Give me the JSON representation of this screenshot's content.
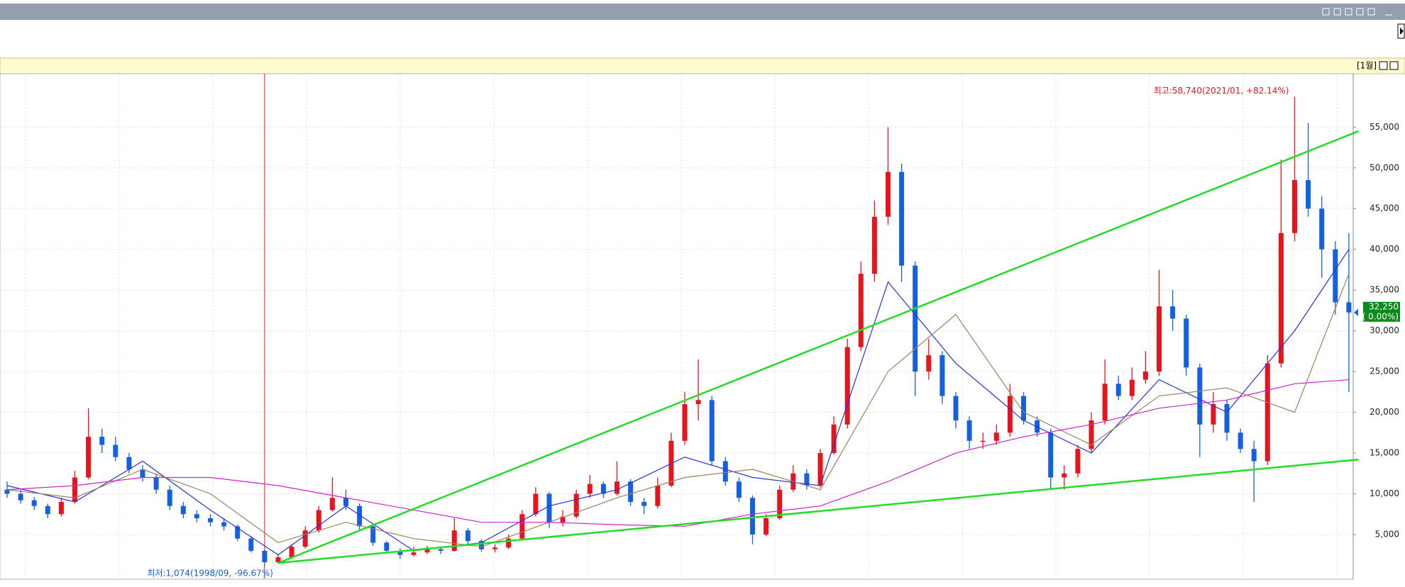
{
  "period_label": "[1월]",
  "chart_data": {
    "type": "candlestick",
    "up_color": "#e8141c",
    "down_color": "#1560e0",
    "ylim": [
      -400,
      61380
    ],
    "yticks": [
      {
        "value": 5000,
        "label": "5,000"
      },
      {
        "value": 10000,
        "label": "10,000"
      },
      {
        "value": 15000,
        "label": "15,000"
      },
      {
        "value": 20000,
        "label": "20,000"
      },
      {
        "value": 25000,
        "label": "25,000"
      },
      {
        "value": 30000,
        "label": "30,000"
      },
      {
        "value": 35000,
        "label": "35,000"
      },
      {
        "value": 40000,
        "label": "40,000"
      },
      {
        "value": 45000,
        "label": "45,000"
      },
      {
        "value": 50000,
        "label": "50,000"
      },
      {
        "value": 55000,
        "label": "55,000"
      }
    ],
    "grid": true,
    "open": [
      10500,
      10000,
      9200,
      8500,
      7500,
      9000,
      12000,
      17000,
      16000,
      14500,
      13000,
      12000,
      10500,
      8500,
      7500,
      7000,
      6500,
      6000,
      4500,
      3000,
      1600,
      2200,
      3500,
      5500,
      8000,
      9500,
      8500,
      6000,
      4000,
      3000,
      2500,
      2800,
      3200,
      3000,
      5500,
      4200,
      3200,
      3400,
      4500,
      7500,
      10000,
      6500,
      7200,
      10000,
      11200,
      10000,
      11500,
      9000,
      8500,
      11000,
      16500,
      21000,
      21500,
      14000,
      11500,
      9500,
      5000,
      7000,
      10500,
      12500,
      11000,
      15000,
      18500,
      28000,
      37000,
      44000,
      49500,
      38000,
      25000,
      27000,
      22000,
      19000,
      16500,
      16500,
      17500,
      22000,
      19000,
      17500,
      12000,
      12500,
      15500,
      19000,
      23500,
      22000,
      24000,
      25000,
      33000,
      31500,
      25500,
      18500,
      21000,
      17500,
      15500,
      14000,
      26000,
      42000,
      48500,
      45000,
      40000,
      33500
    ],
    "high": [
      11500,
      10500,
      9600,
      8800,
      9500,
      12800,
      20500,
      18000,
      17000,
      15000,
      13500,
      12500,
      11000,
      9000,
      8000,
      7500,
      7000,
      6200,
      4800,
      3200,
      2600,
      3800,
      6000,
      8500,
      12000,
      10500,
      8800,
      6200,
      4200,
      3300,
      3500,
      3600,
      3500,
      7000,
      5800,
      4400,
      3800,
      5000,
      8000,
      10800,
      10200,
      8000,
      10500,
      12300,
      11500,
      14000,
      11800,
      9500,
      12000,
      17500,
      22500,
      26500,
      22000,
      14500,
      12000,
      9800,
      7500,
      11000,
      13500,
      13000,
      15500,
      19500,
      29000,
      38500,
      46000,
      55000,
      50500,
      38500,
      29000,
      27500,
      22500,
      19500,
      17500,
      18500,
      23500,
      22500,
      19500,
      18000,
      13500,
      16000,
      20000,
      26500,
      24500,
      25500,
      27500,
      37500,
      35000,
      32000,
      26000,
      22500,
      21500,
      18000,
      16500,
      27000,
      51000,
      58740,
      55500,
      46500,
      41000,
      42000
    ],
    "low": [
      9500,
      8800,
      8000,
      7000,
      7200,
      8800,
      11800,
      15000,
      14000,
      12500,
      11500,
      10000,
      8000,
      7000,
      6500,
      6000,
      5500,
      4200,
      2800,
      1074,
      1400,
      2000,
      3300,
      5200,
      7800,
      8000,
      5500,
      3600,
      2700,
      2000,
      2300,
      2600,
      2600,
      2900,
      3800,
      2900,
      2800,
      3200,
      4300,
      7200,
      5800,
      6000,
      7000,
      9500,
      9500,
      9800,
      8500,
      7500,
      8200,
      10800,
      16000,
      19000,
      13500,
      11000,
      9000,
      3800,
      4800,
      6800,
      10200,
      10500,
      10800,
      14800,
      18000,
      27500,
      36000,
      43000,
      36000,
      22000,
      24000,
      21000,
      18000,
      15500,
      15500,
      16000,
      17000,
      18500,
      17000,
      10500,
      10500,
      12000,
      15000,
      18500,
      21500,
      21500,
      23500,
      24500,
      30000,
      24500,
      14500,
      17500,
      16500,
      15000,
      9000,
      13500,
      25500,
      41000,
      44000,
      36500,
      32000,
      22500
    ],
    "close": [
      10000,
      9200,
      8500,
      7500,
      9000,
      12000,
      17000,
      16000,
      14500,
      13000,
      12000,
      10500,
      8500,
      7500,
      7000,
      6500,
      6000,
      4500,
      3000,
      1600,
      2200,
      3500,
      5500,
      8000,
      9500,
      8500,
      6000,
      4000,
      3000,
      2500,
      2800,
      3200,
      3000,
      5500,
      4200,
      3200,
      3400,
      4500,
      7500,
      10000,
      6500,
      7200,
      10000,
      11200,
      10000,
      11500,
      9000,
      8500,
      11000,
      16500,
      21000,
      21500,
      14000,
      11500,
      9500,
      5000,
      7000,
      10500,
      12500,
      11000,
      15000,
      18500,
      28000,
      37000,
      44000,
      49500,
      38000,
      25000,
      27000,
      22000,
      19000,
      16500,
      16500,
      17500,
      22000,
      19000,
      17500,
      12000,
      12500,
      15500,
      19000,
      23500,
      22000,
      24000,
      25000,
      33000,
      31500,
      25500,
      18500,
      21000,
      17500,
      15500,
      14000,
      26000,
      42000,
      48500,
      45000,
      40000,
      33500,
      32250
    ],
    "moving_averages": [
      {
        "color": "#2233dd",
        "x": [
          0,
          5,
          10,
          15,
          20,
          25,
          30,
          35,
          40,
          45,
          50,
          55,
          60,
          65,
          70,
          75,
          80,
          85,
          90,
          95,
          99
        ],
        "values": [
          11000,
          9000,
          14000,
          8000,
          2500,
          8500,
          3000,
          4000,
          8500,
          10500,
          14500,
          12000,
          11000,
          36000,
          26000,
          19000,
          15000,
          24000,
          20000,
          30000,
          40000
        ]
      },
      {
        "color": "#a08060",
        "x": [
          0,
          5,
          10,
          15,
          20,
          25,
          30,
          35,
          40,
          45,
          50,
          55,
          60,
          65,
          70,
          75,
          80,
          85,
          90,
          95,
          99
        ],
        "values": [
          10500,
          9500,
          13000,
          10000,
          4000,
          6500,
          4500,
          3500,
          6500,
          9500,
          12000,
          13000,
          10500,
          25000,
          32000,
          20000,
          16000,
          22000,
          23000,
          20000,
          37000
        ]
      },
      {
        "color": "#d020d0",
        "x": [
          0,
          5,
          10,
          15,
          20,
          25,
          30,
          35,
          40,
          45,
          50,
          55,
          60,
          65,
          70,
          75,
          80,
          85,
          90,
          95,
          99
        ],
        "values": [
          10500,
          11000,
          12000,
          12000,
          11000,
          9500,
          8000,
          6500,
          6500,
          6200,
          6000,
          7500,
          8500,
          11500,
          15000,
          17000,
          18500,
          20500,
          21500,
          23500,
          24000
        ]
      }
    ],
    "trendlines": [
      {
        "color": "#22dd22",
        "points": [
          [
            20,
            1500
          ],
          [
            99.7,
            54500
          ]
        ]
      },
      {
        "color": "#22dd22",
        "points": [
          [
            20,
            1500
          ],
          [
            99.7,
            14200
          ]
        ]
      }
    ],
    "crosshair_x": 19,
    "annotations": [
      {
        "text": "최고:58,740(2021/01, +82.14%)",
        "color": "#e8141c"
      },
      {
        "text": "최저:1,074(1998/09, -96.67%)",
        "color": "#1560e0"
      }
    ],
    "current_price": {
      "value": 32250,
      "label": "32,250",
      "change": "( 0.00%)"
    }
  }
}
